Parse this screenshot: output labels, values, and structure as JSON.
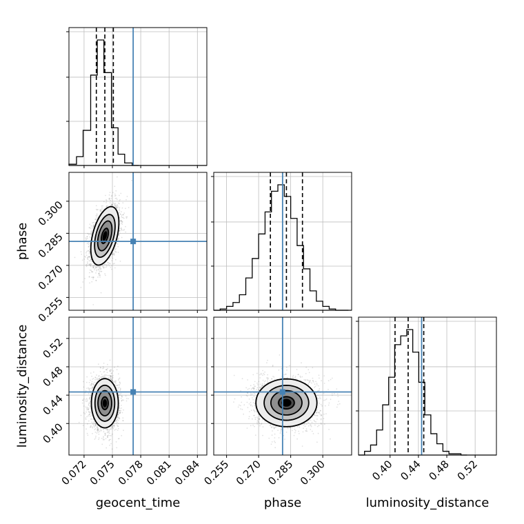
{
  "chart_data": {
    "type": "corner",
    "parameters": [
      "geocent_time",
      "phase",
      "luminosity_distance"
    ],
    "truths": {
      "geocent_time": 0.0772,
      "phase": 0.2812,
      "luminosity_distance": 0.4445
    },
    "truth_color": "#4682b4",
    "quantile_lines": {
      "geocent_time": [
        0.0733,
        0.0742,
        0.0751
      ],
      "phase": [
        0.2755,
        0.283,
        0.2905
      ],
      "luminosity_distance": [
        0.407,
        0.4255,
        0.4475
      ]
    },
    "axes": {
      "geocent_time": {
        "range": [
          0.0704,
          0.085
        ],
        "ticks": [
          0.072,
          0.075,
          0.078,
          0.081,
          0.084
        ],
        "tick_labels": [
          "0.072",
          "0.075",
          "0.078",
          "0.081",
          "0.084"
        ]
      },
      "phase": {
        "range": [
          0.249,
          0.3135
        ],
        "ticks": [
          0.255,
          0.27,
          0.285,
          0.3
        ],
        "tick_labels": [
          "0.255",
          "0.270",
          "0.285",
          "0.300"
        ]
      },
      "luminosity_distance": {
        "range": [
          0.3555,
          0.55
        ],
        "ticks": [
          0.4,
          0.44,
          0.48,
          0.52
        ],
        "tick_labels": [
          "0.40",
          "0.44",
          "0.48",
          "0.52"
        ]
      }
    },
    "histograms": {
      "geocent_time": {
        "edges": [
          0.0704,
          0.0712,
          0.0719,
          0.0727,
          0.0734,
          0.0741,
          0.0749,
          0.0756,
          0.0763,
          0.0771,
          0.0778
        ],
        "counts": [
          1,
          7,
          28,
          72,
          100,
          74,
          30,
          9,
          2,
          0
        ]
      },
      "phase": {
        "edges": [
          0.249,
          0.252,
          0.255,
          0.258,
          0.261,
          0.264,
          0.267,
          0.27,
          0.273,
          0.276,
          0.279,
          0.282,
          0.285,
          0.288,
          0.291,
          0.294,
          0.297,
          0.3,
          0.303,
          0.306,
          0.309,
          0.312
        ],
        "counts": [
          0,
          1,
          3,
          6,
          12,
          25,
          40,
          59,
          76,
          92,
          97,
          88,
          71,
          50,
          32,
          15,
          7,
          3,
          1,
          0,
          0
        ]
      },
      "luminosity_distance": {
        "edges": [
          0.3555,
          0.364,
          0.3725,
          0.381,
          0.3895,
          0.398,
          0.4065,
          0.415,
          0.4235,
          0.432,
          0.4405,
          0.449,
          0.4575,
          0.466,
          0.4745,
          0.483,
          0.4915,
          0.5,
          0.5085
        ],
        "counts": [
          0,
          3,
          8,
          20,
          40,
          62,
          88,
          95,
          100,
          82,
          58,
          32,
          17,
          9,
          3,
          1,
          1,
          0
        ]
      }
    },
    "joint": [
      {
        "x": "geocent_time",
        "y": "phase",
        "center": [
          0.0742,
          0.2838
        ],
        "sigma": [
          0.00075,
          0.0069
        ],
        "rho": 0.45
      },
      {
        "x": "geocent_time",
        "y": "luminosity_distance",
        "center": [
          0.0742,
          0.4286
        ],
        "sigma": [
          0.00072,
          0.0175
        ],
        "rho": 0.0
      },
      {
        "x": "phase",
        "y": "luminosity_distance",
        "center": [
          0.283,
          0.4292
        ],
        "sigma": [
          0.0072,
          0.017
        ],
        "rho": 0.0
      }
    ]
  }
}
